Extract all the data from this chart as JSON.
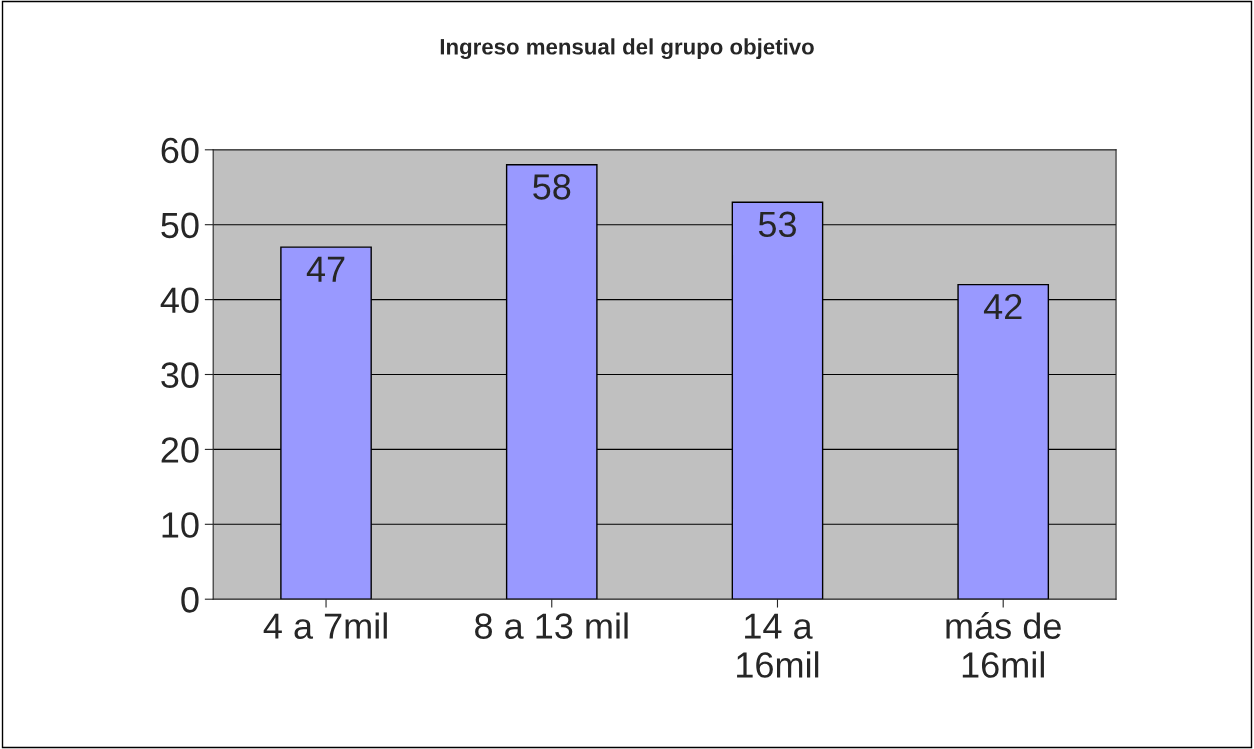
{
  "chart_data": {
    "type": "bar",
    "title": "Ingreso mensual del grupo objetivo",
    "categories": [
      "4 a 7mil",
      "8 a 13 mil",
      "14 a\n16mil",
      "más de\n16mil"
    ],
    "values": [
      47,
      58,
      53,
      42
    ],
    "color": "#9999ff",
    "ylim": [
      0,
      60
    ],
    "yticks": [
      0,
      10,
      20,
      30,
      40,
      50,
      60
    ],
    "grid": "y",
    "data_labels": true
  }
}
